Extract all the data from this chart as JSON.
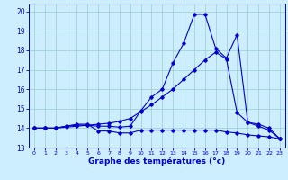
{
  "xlabel": "Graphe des températures (°c)",
  "bg_color": "#cceeff",
  "grid_color": "#99cccc",
  "line_color": "#0000cc",
  "ylim": [
    13,
    20.4
  ],
  "xlim": [
    -0.5,
    23.5
  ],
  "yticks": [
    13,
    14,
    15,
    16,
    17,
    18,
    19,
    20
  ],
  "xticks": [
    0,
    1,
    2,
    3,
    4,
    5,
    6,
    7,
    8,
    9,
    10,
    11,
    12,
    13,
    14,
    15,
    16,
    17,
    18,
    19,
    20,
    21,
    22,
    23
  ],
  "line1_y": [
    14.0,
    14.0,
    14.0,
    14.1,
    14.2,
    14.2,
    13.85,
    13.85,
    13.75,
    13.75,
    13.9,
    13.9,
    13.9,
    13.9,
    13.9,
    13.9,
    13.9,
    13.9,
    13.8,
    13.75,
    13.65,
    13.6,
    13.55,
    13.45
  ],
  "line2_y": [
    14.0,
    14.0,
    14.0,
    14.1,
    14.15,
    14.15,
    14.1,
    14.1,
    14.05,
    14.1,
    14.9,
    15.6,
    16.0,
    17.35,
    18.35,
    19.85,
    19.85,
    18.1,
    17.6,
    18.8,
    14.3,
    14.2,
    14.0,
    13.45
  ],
  "line3_y": [
    14.0,
    14.0,
    14.0,
    14.05,
    14.1,
    14.15,
    14.2,
    14.25,
    14.35,
    14.5,
    14.85,
    15.2,
    15.6,
    16.0,
    16.5,
    17.0,
    17.5,
    17.9,
    17.55,
    14.8,
    14.3,
    14.1,
    13.9,
    13.45
  ]
}
